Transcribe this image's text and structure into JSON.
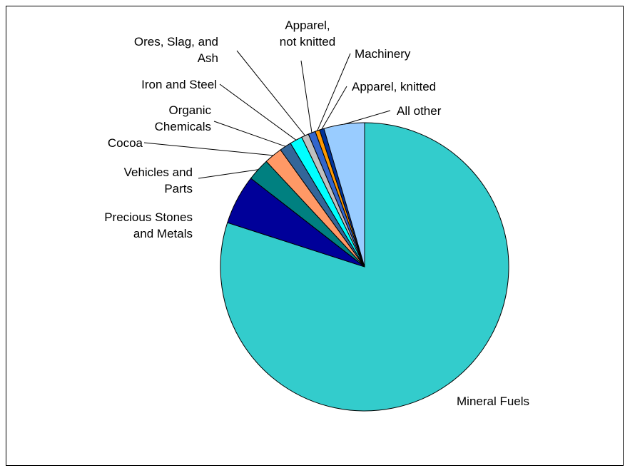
{
  "chart_data": {
    "type": "pie",
    "start_angle_deg": 0,
    "direction": "clockwise",
    "slices": [
      {
        "label": "Mineral Fuels",
        "value": 79.0,
        "color": "#33cccc"
      },
      {
        "label": "Precious Stones and Metals",
        "value": 5.5,
        "color": "#000099"
      },
      {
        "label": "Vehicles and Parts",
        "value": 2.5,
        "color": "#008080"
      },
      {
        "label": "Cocoa",
        "value": 2.0,
        "color": "#ff9966"
      },
      {
        "label": "Organic Chemicals",
        "value": 1.3,
        "color": "#336699"
      },
      {
        "label": "Iron and Steel",
        "value": 1.4,
        "color": "#00ffff"
      },
      {
        "label": "Ores, Slag, and Ash",
        "value": 0.8,
        "color": "#c0c0c0"
      },
      {
        "label": "Apparel, not knitted",
        "value": 0.8,
        "color": "#3366cc"
      },
      {
        "label": "Machinery",
        "value": 0.5,
        "color": "#ff9900"
      },
      {
        "label": "Apparel, knitted",
        "value": 0.5,
        "color": "#003399"
      },
      {
        "label": "All other",
        "value": 4.5,
        "color": "#99ccff"
      }
    ]
  }
}
